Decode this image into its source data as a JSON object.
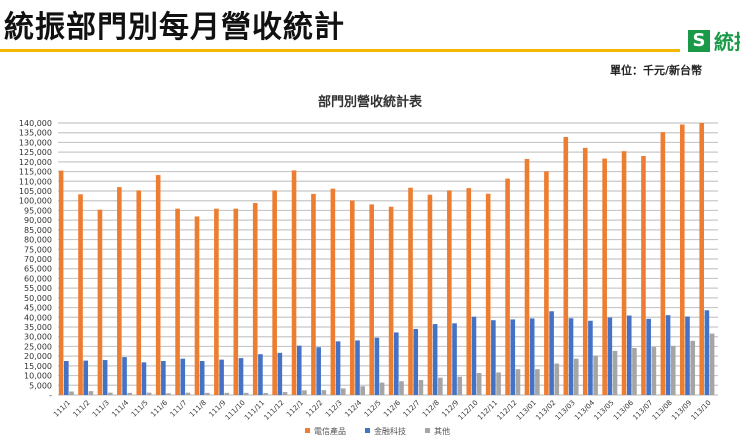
{
  "header": {
    "title": "統振部門別每月營收統計",
    "logo_text": "統振",
    "unit_label": "單位：千元/新台幣"
  },
  "colors": {
    "accent_rule": "#f5b800",
    "logo": "#1a9a48"
  },
  "chart_data": {
    "type": "bar",
    "title": "部門別營收統計表",
    "xlabel": "",
    "ylabel": "",
    "ylim": [
      0,
      140000
    ],
    "ytick_step": 5000,
    "grid": true,
    "legend_position": "bottom",
    "categories": [
      "111/1",
      "111/2",
      "111/3",
      "111/4",
      "111/5",
      "111/6",
      "111/7",
      "111/8",
      "111/9",
      "111/10",
      "111/11",
      "111/12",
      "112/1",
      "112/2",
      "112/3",
      "112/4",
      "112/5",
      "112/6",
      "112/7",
      "112/8",
      "112/9",
      "112/10",
      "112/11",
      "112/12",
      "113/01",
      "113/02",
      "113/03",
      "113/04",
      "113/05",
      "113/06",
      "113/07",
      "113/08",
      "113/09",
      "113/10"
    ],
    "series": [
      {
        "name": "電信產品",
        "color": "#ed7d31",
        "values": [
          115500,
          103300,
          95400,
          107000,
          105300,
          113200,
          95900,
          91900,
          95900,
          95900,
          98800,
          105300,
          115600,
          103500,
          106200,
          100100,
          98100,
          96900,
          106700,
          103100,
          105300,
          106500,
          103600,
          111400,
          121500,
          115100,
          132800,
          127200,
          121700,
          125500,
          123000,
          135300,
          139200,
          140000
        ]
      },
      {
        "name": "金融科技",
        "color": "#4472c4",
        "values": [
          17500,
          17700,
          18000,
          19500,
          16800,
          17500,
          18700,
          17500,
          18200,
          19000,
          21000,
          21700,
          25400,
          24600,
          27600,
          28100,
          29500,
          32200,
          34000,
          36500,
          36900,
          40300,
          38500,
          38900,
          39400,
          43100,
          39500,
          38200,
          39900,
          40900,
          39200,
          41100,
          40400,
          43600
        ]
      },
      {
        "name": "其他",
        "color": "#a5a5a5",
        "values": [
          1800,
          2000,
          1200,
          1100,
          1200,
          900,
          1200,
          1100,
          1100,
          1100,
          1000,
          1500,
          2400,
          2500,
          3400,
          4500,
          6400,
          7100,
          7700,
          8900,
          9400,
          11300,
          11600,
          13300,
          13300,
          16200,
          18700,
          20200,
          22700,
          24200,
          24700,
          25300,
          27900,
          31600
        ]
      }
    ]
  }
}
